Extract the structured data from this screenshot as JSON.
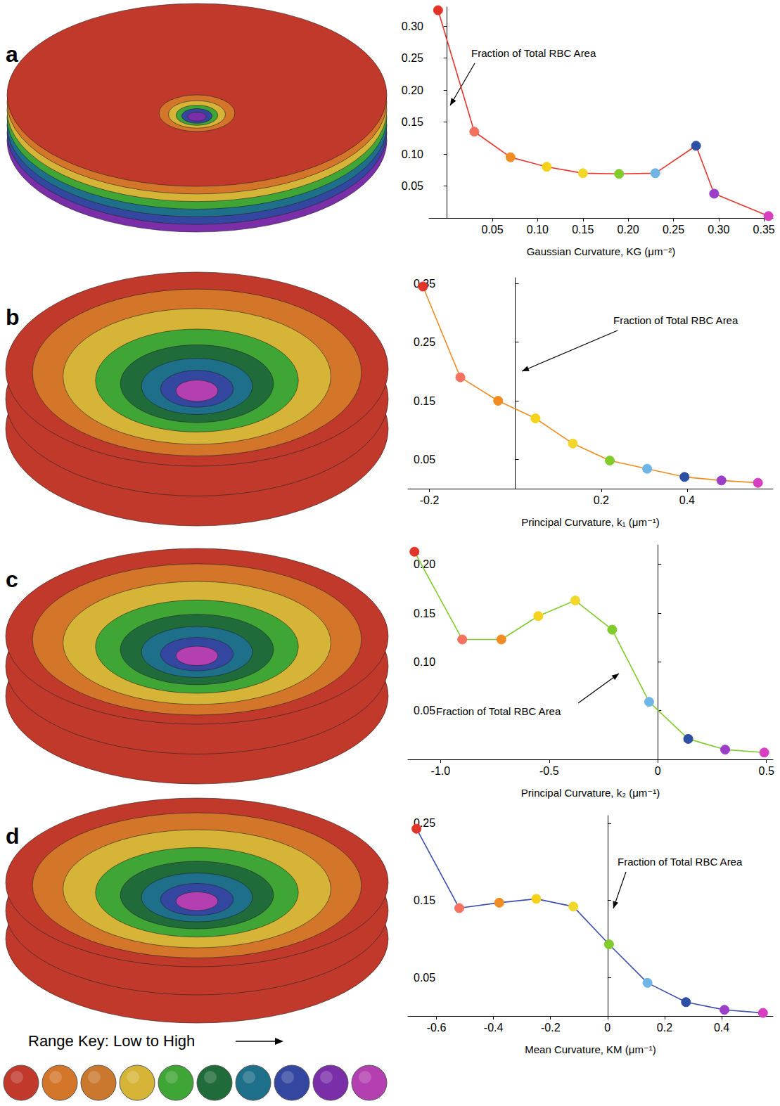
{
  "chart_data": [
    {
      "type": "line",
      "title": "a",
      "xlabel": "Gaussian Curvature, KG (μm⁻²)",
      "annotation": "Fraction of Total RBC Area",
      "color": "#e8352b",
      "marker": "circle",
      "grid": false,
      "colors": [
        "#e3342a",
        "#f4705f",
        "#f08c21",
        "#f4d31a",
        "#f2d72b",
        "#7fcc2a",
        "#6fb6e6",
        "#2c4ea3",
        "#9b3fc9",
        "#d83fc0"
      ],
      "x": [
        -0.01,
        0.03,
        0.07,
        0.11,
        0.15,
        0.19,
        0.23,
        0.275,
        0.295,
        0.355
      ],
      "values": [
        0.325,
        0.135,
        0.095,
        0.08,
        0.07,
        0.069,
        0.07,
        0.113,
        0.038,
        0.003
      ],
      "xlim": [
        -0.02,
        0.36
      ],
      "xticks": [
        0.05,
        {
          "value": 0.1,
          "label": "0.10"
        },
        0.15,
        {
          "value": 0.2,
          "label": "0.20"
        },
        0.25,
        {
          "value": 0.3,
          "label": "0.30"
        },
        0.35
      ],
      "ylim": [
        0,
        0.33
      ],
      "yticks": [
        0.05,
        {
          "value": 0.1,
          "label": "0.10"
        },
        0.15,
        {
          "value": 0.2,
          "label": "0.20"
        },
        0.25,
        {
          "value": 0.3,
          "label": "0.30"
        }
      ]
    },
    {
      "type": "line",
      "title": "b",
      "xlabel": "Principal Curvature, k₁ (μm⁻¹)",
      "annotation": "Fraction of Total RBC Area",
      "color": "#f08c21",
      "marker": "circle",
      "grid": false,
      "colors": [
        "#e3342a",
        "#f4705f",
        "#f08c21",
        "#f4d31a",
        "#f2d72b",
        "#7fcc2a",
        "#6fb6e6",
        "#2c4ea3",
        "#9b3fc9",
        "#d83fc0"
      ],
      "x": [
        -0.215,
        -0.128,
        -0.04,
        0.047,
        0.134,
        0.22,
        0.307,
        0.394,
        0.48,
        0.565
      ],
      "values": [
        0.345,
        0.19,
        0.15,
        0.12,
        0.077,
        0.048,
        0.034,
        0.02,
        0.014,
        0.01
      ],
      "xlim": [
        -0.25,
        0.6
      ],
      "xticks": [
        -0.2,
        0.2,
        0.4
      ],
      "ylim": [
        0,
        0.36
      ],
      "yticks": [
        0.05,
        0.15,
        0.25,
        0.35
      ]
    },
    {
      "type": "line",
      "title": "c",
      "xlabel": "Principal Curvature, k₂ (μm⁻¹)",
      "annotation": "Fraction of Total RBC Area",
      "color": "#7fcc2a",
      "marker": "circle",
      "grid": false,
      "colors": [
        "#e3342a",
        "#f4705f",
        "#f08c21",
        "#f4d31a",
        "#f2d72b",
        "#7fcc2a",
        "#6fb6e6",
        "#2c4ea3",
        "#9b3fc9",
        "#d83fc0"
      ],
      "x": [
        -1.12,
        -0.9,
        -0.72,
        -0.55,
        -0.38,
        -0.21,
        -0.04,
        0.14,
        0.31,
        0.49
      ],
      "values": [
        0.213,
        0.123,
        0.123,
        0.147,
        0.163,
        0.133,
        0.059,
        0.021,
        0.01,
        0.007
      ],
      "xlim": [
        -1.15,
        0.53
      ],
      "xticks": [
        {
          "value": -1,
          "label": "-1.0"
        },
        -0.5,
        0,
        0.5
      ],
      "ylim": [
        0,
        0.22
      ],
      "yticks": [
        0.05,
        {
          "value": 0.1,
          "label": "0.10"
        },
        0.15,
        {
          "value": 0.2,
          "label": "0.20"
        }
      ]
    },
    {
      "type": "line",
      "title": "d",
      "xlabel": "Mean Curvature, KM (μm⁻¹)",
      "annotation": "Fraction of Total RBC Area",
      "color": "#3b4fb0",
      "marker": "circle",
      "grid": false,
      "colors": [
        "#e3342a",
        "#f4705f",
        "#f08c21",
        "#f4d31a",
        "#f2d72b",
        "#7fcc2a",
        "#6fb6e6",
        "#2c4ea3",
        "#9b3fc9",
        "#d83fc0"
      ],
      "x": [
        -0.67,
        -0.52,
        -0.38,
        -0.25,
        -0.12,
        0.005,
        0.14,
        0.275,
        0.41,
        0.545
      ],
      "values": [
        0.243,
        0.14,
        0.147,
        0.152,
        0.142,
        0.093,
        0.043,
        0.018,
        0.008,
        0.004
      ],
      "xlim": [
        -0.7,
        0.58
      ],
      "xticks": [
        -0.6,
        -0.4,
        -0.2,
        0,
        0.2,
        0.4
      ],
      "ylim": [
        0,
        0.26
      ],
      "yticks": [
        0.05,
        0.15,
        0.25
      ]
    }
  ],
  "range_key": {
    "label": "Range Key: Low to High",
    "colors": [
      "#c0392b",
      "#d4762a",
      "#c9782e",
      "#d6b437",
      "#3fa535",
      "#1f6b3a",
      "#1e6f8a",
      "#3447a0",
      "#7a2fa8",
      "#b43fb0"
    ]
  }
}
